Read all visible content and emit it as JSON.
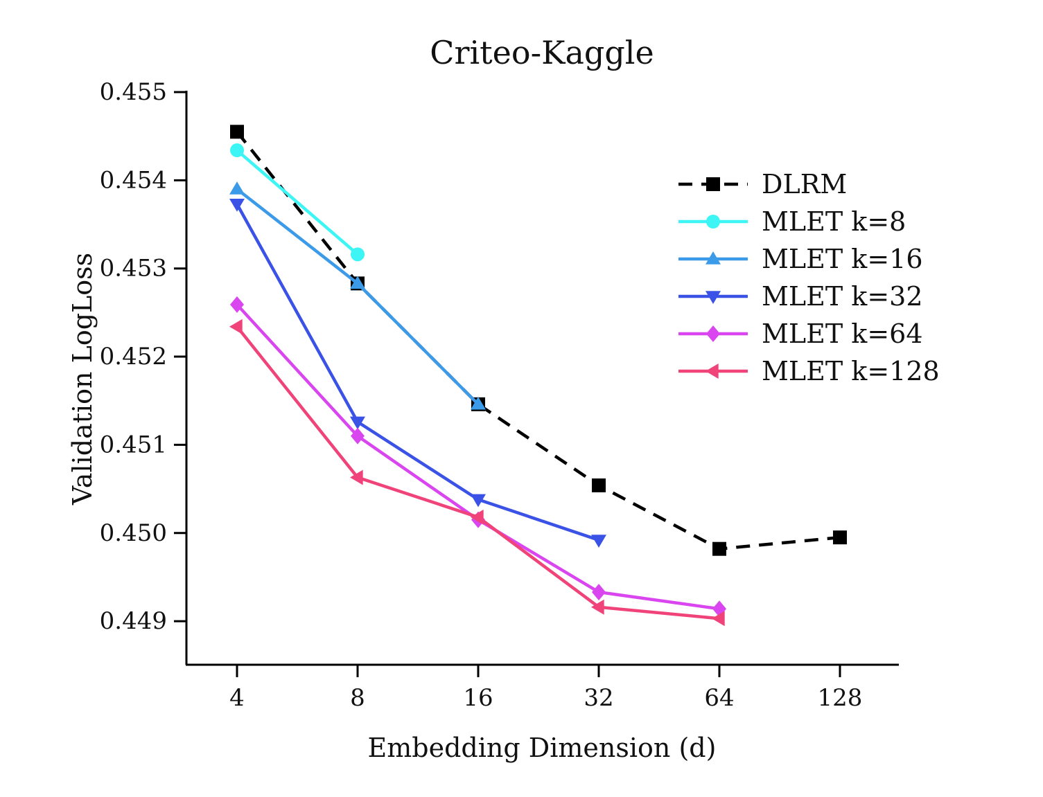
{
  "chart_data": {
    "type": "line",
    "title": "Criteo-Kaggle",
    "xlabel": "Embedding Dimension (d)",
    "ylabel": "Validation LogLoss",
    "x_scale": "log2",
    "categories": [
      "4",
      "8",
      "16",
      "32",
      "64",
      "128"
    ],
    "ylim": [
      0.4485,
      0.455
    ],
    "yticks": [
      "0.449",
      "0.450",
      "0.451",
      "0.452",
      "0.453",
      "0.454",
      "0.455"
    ],
    "ytick_values": [
      0.449,
      0.45,
      0.451,
      0.452,
      0.453,
      0.454,
      0.455
    ],
    "grid": false,
    "legend_position": "right",
    "series": [
      {
        "name": "DLRM",
        "color": "#000000",
        "marker": "square",
        "dashed": true,
        "values": [
          0.45455,
          0.45283,
          0.45146,
          0.45054,
          0.44982,
          0.44995
        ]
      },
      {
        "name": "MLET k=8",
        "color": "#3DF5F5",
        "marker": "circle",
        "dashed": false,
        "values": [
          0.45434,
          0.45316,
          null,
          null,
          null,
          null
        ]
      },
      {
        "name": "MLET k=16",
        "color": "#3C9BE8",
        "marker": "triangle-up",
        "dashed": false,
        "values": [
          0.4539,
          0.45283,
          0.45146,
          null,
          null,
          null
        ]
      },
      {
        "name": "MLET k=32",
        "color": "#3B52E6",
        "marker": "triangle-down",
        "dashed": false,
        "values": [
          0.45373,
          0.45126,
          0.45038,
          0.44992,
          null,
          null
        ]
      },
      {
        "name": "MLET k=64",
        "color": "#D946EF",
        "marker": "diamond",
        "dashed": false,
        "values": [
          0.45259,
          0.4511,
          0.45015,
          0.44933,
          0.44914,
          null
        ]
      },
      {
        "name": "MLET k=128",
        "color": "#F0437A",
        "marker": "triangle-left",
        "dashed": false,
        "values": [
          0.45234,
          0.45063,
          0.45018,
          0.44916,
          0.44903,
          null
        ]
      }
    ]
  }
}
